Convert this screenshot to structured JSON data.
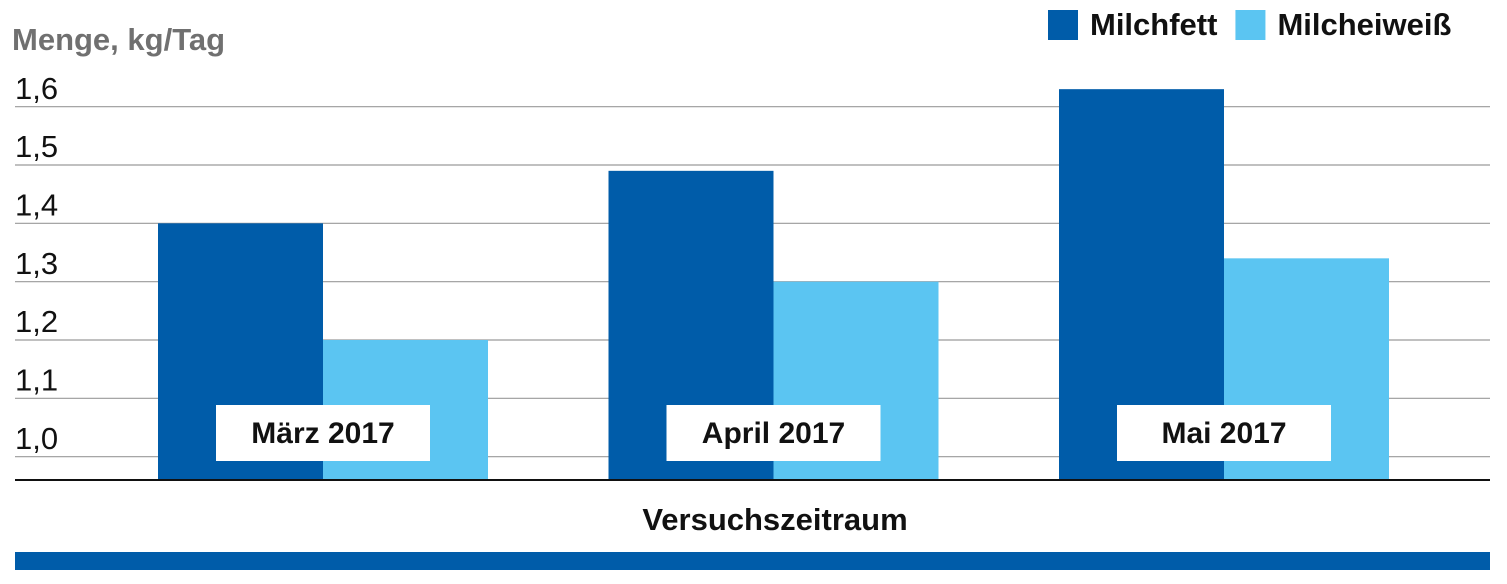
{
  "chart_data": {
    "type": "bar",
    "y_label": "Menge, kg/Tag",
    "x_label": "Versuchszeitraum",
    "categories": [
      "März 2017",
      "April 2017",
      "Mai 2017"
    ],
    "series": [
      {
        "name": "Milchfett",
        "color": "#005ca9",
        "values": [
          1.4,
          1.49,
          1.63
        ]
      },
      {
        "name": "Milcheiweiß",
        "color": "#5bc5f2",
        "values": [
          1.2,
          1.3,
          1.34
        ]
      }
    ],
    "ylim": [
      0.96,
      1.68
    ],
    "yticks": [
      {
        "value": 1.0,
        "label": "1,0"
      },
      {
        "value": 1.1,
        "label": "1,1"
      },
      {
        "value": 1.2,
        "label": "1,2"
      },
      {
        "value": 1.3,
        "label": "1,3"
      },
      {
        "value": 1.4,
        "label": "1,4"
      },
      {
        "value": 1.5,
        "label": "1,5"
      },
      {
        "value": 1.6,
        "label": "1,6"
      }
    ],
    "grid": true,
    "legend": "top-right"
  }
}
